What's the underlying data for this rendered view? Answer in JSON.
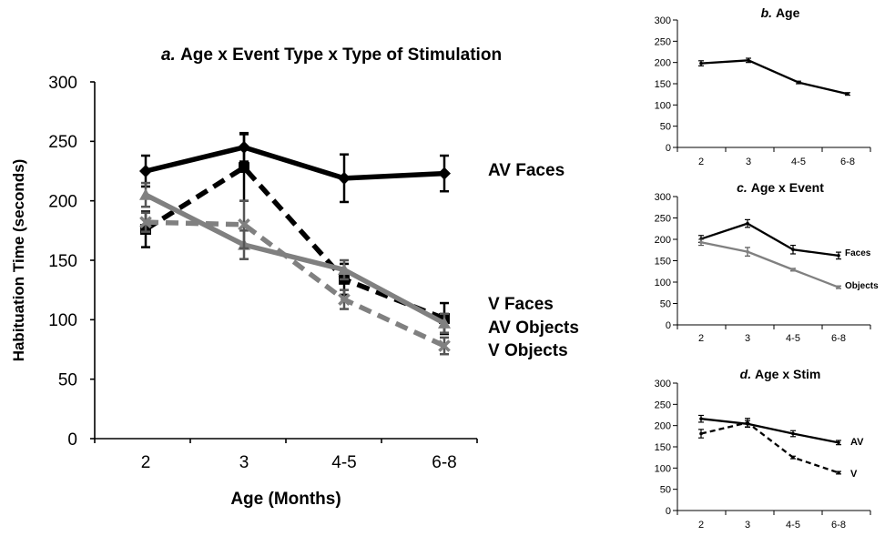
{
  "chart_data": [
    {
      "id": "a",
      "type": "line",
      "title_prefix": "a.",
      "title_rest": "Age x Event Type x Type of Stimulation",
      "xlabel": "Age (Months)",
      "ylabel": "Habituation Time (seconds)",
      "categories": [
        "2",
        "3",
        "4-5",
        "6-8"
      ],
      "ylim": [
        0,
        300
      ],
      "yticks": [
        "0",
        "50",
        "100",
        "150",
        "200",
        "250",
        "300"
      ],
      "grid": false,
      "series": [
        {
          "name": "AV Faces",
          "values": [
            225,
            245,
            219,
            223
          ],
          "err": [
            13,
            12,
            20,
            15
          ],
          "color": "#000000",
          "dash": "solid",
          "marker": "diamond"
        },
        {
          "name": "V Faces",
          "values": [
            176,
            228,
            134,
            101
          ],
          "err": [
            15,
            28,
            13,
            13
          ],
          "color": "#000000",
          "dash": "dashed",
          "marker": "square"
        },
        {
          "name": "AV Objects",
          "values": [
            205,
            163,
            142,
            97
          ],
          "err": [
            10,
            12,
            8,
            8
          ],
          "color": "#808080",
          "dash": "solid",
          "marker": "triangle"
        },
        {
          "name": "V Objects",
          "values": [
            182,
            180,
            117,
            78
          ],
          "err": [
            8,
            20,
            8,
            7
          ],
          "color": "#808080",
          "dash": "dashed",
          "marker": "x"
        }
      ]
    },
    {
      "id": "b",
      "type": "line",
      "title_prefix": "b.",
      "title_rest": "Age",
      "categories": [
        "2",
        "3",
        "4-5",
        "6-8"
      ],
      "ylim": [
        0,
        300
      ],
      "yticks": [
        "0",
        "50",
        "100",
        "150",
        "200",
        "250",
        "300"
      ],
      "series": [
        {
          "values": [
            198,
            205,
            153,
            126
          ],
          "err": [
            6,
            5,
            3,
            3
          ],
          "color": "#000000",
          "dash": "solid"
        }
      ]
    },
    {
      "id": "c",
      "type": "line",
      "title_prefix": "c.",
      "title_rest": "Age x Event",
      "categories": [
        "2",
        "3",
        "4-5",
        "6-8"
      ],
      "ylim": [
        0,
        300
      ],
      "yticks": [
        "0",
        "50",
        "100",
        "150",
        "200",
        "250",
        "300"
      ],
      "series": [
        {
          "name": "Faces",
          "values": [
            201,
            237,
            176,
            162
          ],
          "err": [
            8,
            9,
            10,
            8
          ],
          "color": "#000000",
          "dash": "solid"
        },
        {
          "name": "Objects",
          "values": [
            193,
            171,
            129,
            88
          ],
          "err": [
            7,
            10,
            3,
            3
          ],
          "color": "#808080",
          "dash": "solid"
        }
      ]
    },
    {
      "id": "d",
      "type": "line",
      "title_prefix": "d.",
      "title_rest": "Age x Stim",
      "categories": [
        "2",
        "3",
        "4-5",
        "6-8"
      ],
      "ylim": [
        0,
        300
      ],
      "yticks": [
        "0",
        "50",
        "100",
        "150",
        "200",
        "250",
        "300"
      ],
      "series": [
        {
          "name": "AV",
          "values": [
            216,
            204,
            181,
            160
          ],
          "err": [
            8,
            8,
            7,
            5
          ],
          "color": "#000000",
          "dash": "solid"
        },
        {
          "name": "V",
          "values": [
            181,
            207,
            125,
            89
          ],
          "err": [
            10,
            10,
            3,
            3
          ],
          "color": "#000000",
          "dash": "dashed"
        }
      ]
    }
  ]
}
